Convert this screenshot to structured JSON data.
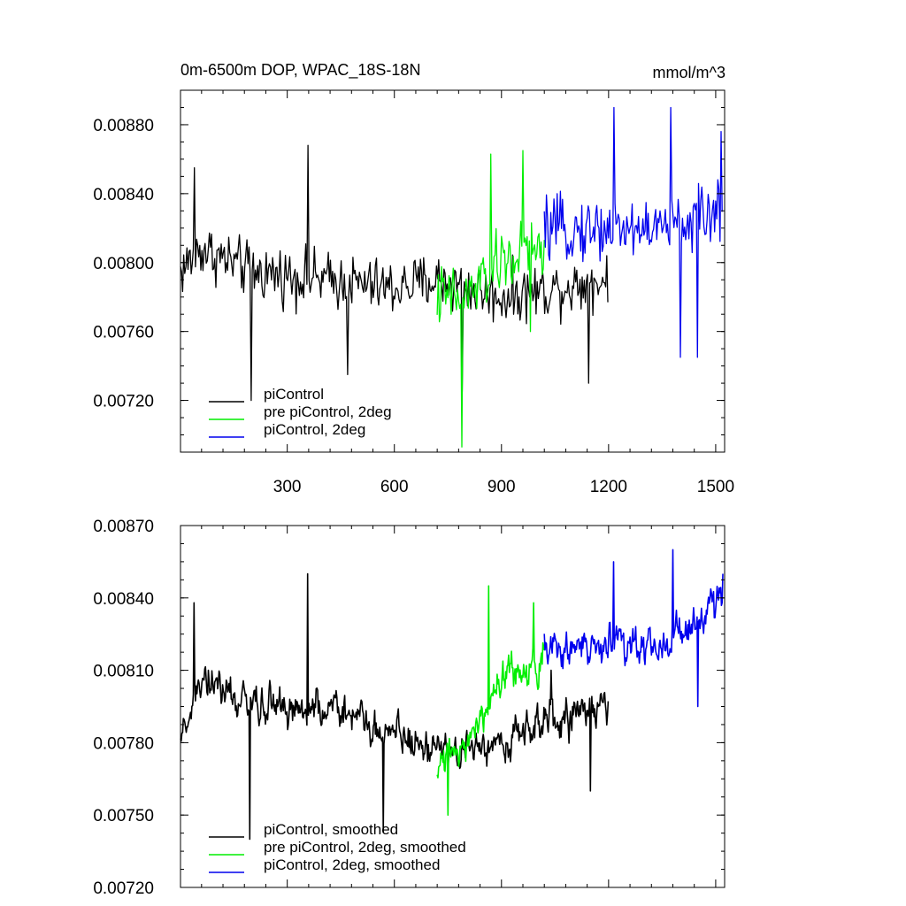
{
  "chart_data": [
    {
      "type": "line",
      "title": "0m-6500m DOP, WPAC_18S-18N",
      "units": "mmol/m^3",
      "xlim": [
        1,
        1525
      ],
      "ylim": [
        0.0069,
        0.009
      ],
      "xticks": [
        300,
        600,
        900,
        1200,
        1500
      ],
      "xtick_labels": [
        "300",
        "600",
        "900",
        "1200",
        "1500"
      ],
      "yticks": [
        0.0072,
        0.0076,
        0.008,
        0.0084,
        0.0088
      ],
      "ytick_labels": [
        "0.00720",
        "0.00760",
        "0.00800",
        "0.00840",
        "0.00880"
      ],
      "legend_position": "bottom-left",
      "series": [
        {
          "name": "piControl",
          "color": "#000000",
          "x_range": [
            1,
            1200
          ],
          "mean": [
            [
              1,
              0.00795
            ],
            [
              60,
              0.00808
            ],
            [
              200,
              0.00795
            ],
            [
              400,
              0.0079
            ],
            [
              600,
              0.00785
            ],
            [
              720,
              0.0079
            ],
            [
              900,
              0.0078
            ],
            [
              1050,
              0.00785
            ],
            [
              1200,
              0.0079
            ]
          ],
          "amplitude": 0.00024,
          "peaks": [
            [
              40,
              0.00855
            ],
            [
              200,
              0.0072
            ],
            [
              357,
              0.00868
            ],
            [
              470,
              0.00735
            ],
            [
              790,
              0.00725
            ],
            [
              1145,
              0.0073
            ]
          ]
        },
        {
          "name": "pre piControl, 2deg",
          "color": "#00ee00",
          "x_range": [
            720,
            1020
          ],
          "mean": [
            [
              720,
              0.0078
            ],
            [
              800,
              0.0078
            ],
            [
              900,
              0.008
            ],
            [
              1020,
              0.0081
            ]
          ],
          "amplitude": 0.00027,
          "peaks": [
            [
              788,
              0.00693
            ],
            [
              870,
              0.00863
            ],
            [
              960,
              0.00865
            ],
            [
              980,
              0.0076
            ]
          ]
        },
        {
          "name": "piControl, 2deg",
          "color": "#0000ee",
          "x_range": [
            1020,
            1520
          ],
          "mean": [
            [
              1020,
              0.00818
            ],
            [
              1200,
              0.0082
            ],
            [
              1350,
              0.0082
            ],
            [
              1520,
              0.0083
            ]
          ],
          "amplitude": 0.00026,
          "peaks": [
            [
              1215,
              0.0089
            ],
            [
              1375,
              0.0089
            ],
            [
              1400,
              0.00745
            ],
            [
              1450,
              0.00745
            ],
            [
              1515,
              0.00876
            ]
          ]
        }
      ]
    },
    {
      "type": "line",
      "xlim": [
        1,
        1525
      ],
      "ylim": [
        0.0072,
        0.0087
      ],
      "xticks": [
        300,
        600,
        900,
        1200,
        1500
      ],
      "yticks": [
        0.0072,
        0.0075,
        0.0078,
        0.0081,
        0.0084,
        0.0087
      ],
      "ytick_labels": [
        "0.00720",
        "0.00750",
        "0.00780",
        "0.00810",
        "0.00840",
        "0.00870"
      ],
      "legend_position": "bottom-left",
      "series": [
        {
          "name": "piControl, smoothed",
          "color": "#000000",
          "x_range": [
            1,
            1200
          ],
          "mean": [
            [
              1,
              0.0078
            ],
            [
              50,
              0.00805
            ],
            [
              200,
              0.00795
            ],
            [
              400,
              0.00795
            ],
            [
              600,
              0.00785
            ],
            [
              730,
              0.00775
            ],
            [
              900,
              0.0078
            ],
            [
              1050,
              0.0079
            ],
            [
              1200,
              0.00795
            ]
          ],
          "amplitude": 0.00014,
          "peaks": [
            [
              40,
              0.00838
            ],
            [
              195,
              0.0074
            ],
            [
              357,
              0.0085
            ],
            [
              570,
              0.00743
            ],
            [
              1040,
              0.0081
            ],
            [
              1150,
              0.0076
            ]
          ]
        },
        {
          "name": "pre piControl, 2deg, smoothed",
          "color": "#00ee00",
          "x_range": [
            720,
            1020
          ],
          "mean": [
            [
              720,
              0.0077
            ],
            [
              800,
              0.00775
            ],
            [
              900,
              0.00805
            ],
            [
              1020,
              0.00815
            ]
          ],
          "amplitude": 0.00014,
          "peaks": [
            [
              750,
              0.0075
            ],
            [
              865,
              0.00845
            ],
            [
              990,
              0.00838
            ]
          ]
        },
        {
          "name": "piControl, 2deg, smoothed",
          "color": "#0000ee",
          "x_range": [
            1020,
            1520
          ],
          "mean": [
            [
              1020,
              0.0082
            ],
            [
              1200,
              0.0082
            ],
            [
              1350,
              0.0082
            ],
            [
              1520,
              0.00838
            ]
          ],
          "amplitude": 0.00014,
          "peaks": [
            [
              1215,
              0.00855
            ],
            [
              1380,
              0.0086
            ],
            [
              1450,
              0.00795
            ],
            [
              1520,
              0.0085
            ]
          ]
        }
      ]
    }
  ]
}
